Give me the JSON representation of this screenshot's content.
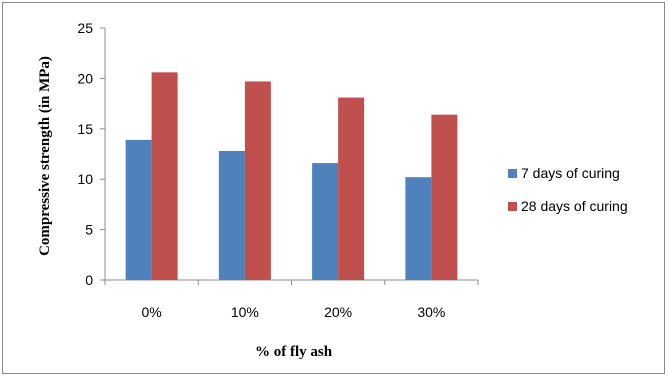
{
  "chart_data": {
    "type": "bar",
    "categories": [
      "0%",
      "10%",
      "20%",
      "30%"
    ],
    "series": [
      {
        "name": "7 days of curing",
        "color": "#4f81bd",
        "values": [
          13.9,
          12.8,
          11.6,
          10.2
        ]
      },
      {
        "name": "28 days of curing",
        "color": "#c0504d",
        "values": [
          20.6,
          19.7,
          18.1,
          16.4
        ]
      }
    ],
    "xlabel": "% of fly ash",
    "ylabel": "Compressive strength (in MPa)",
    "ylim": [
      0,
      25
    ],
    "yticks": [
      "0",
      "5",
      "10",
      "15",
      "20",
      "25"
    ],
    "grid": false,
    "legend_position": "right"
  }
}
